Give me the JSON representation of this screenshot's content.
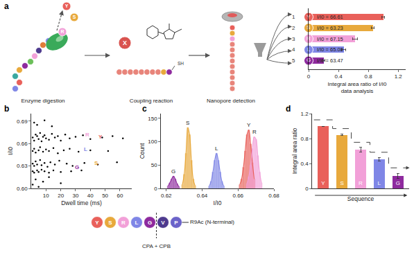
{
  "panel_labels": [
    "a",
    "b",
    "c",
    "d"
  ],
  "diagram": {
    "steps": [
      "Enzyme digestion",
      "Coupling reaction",
      "Nanopore detection"
    ],
    "released": [
      "Y",
      "S",
      "R"
    ],
    "coupled": "X",
    "thiol": "SH"
  },
  "sequence": {
    "residues": [
      "Y",
      "S",
      "R",
      "L",
      "G",
      "V",
      "P"
    ],
    "colors": [
      "#e9605a",
      "#e8a93c",
      "#f2a0d8",
      "#7f86e6",
      "#8e2a9e",
      "#4e3a8e",
      "#6b63c9"
    ],
    "tail": "R9Ac (N-terminal)",
    "cut_label": "CPA + CPB"
  },
  "chart_data": [
    {
      "type": "bar",
      "orientation": "horizontal",
      "categories": [
        "Y",
        "S",
        "R",
        "L",
        "G"
      ],
      "values": [
        1.0,
        0.86,
        0.62,
        0.47,
        0.2
      ],
      "errors": [
        0.02,
        0.02,
        0.03,
        0.03,
        0.02
      ],
      "colors": [
        "#e9605a",
        "#e8a93c",
        "#f2a0d8",
        "#7f86e6",
        "#8e2a9e"
      ],
      "annotations": [
        "I/I0 = 66.61",
        "I/I0 = 63.23",
        "I/I0 = 67.15",
        "I/I0 = 65.08",
        "I/I0 = 63.47"
      ],
      "row_numbers": [
        "1",
        "2",
        "3",
        "4",
        "5"
      ],
      "x_label": [
        "Integral area ratio of I/I0",
        "data analysis"
      ],
      "xlim": [
        0,
        1.3
      ],
      "xticks": [
        0,
        0.4,
        0.8,
        1.2
      ],
      "tick_labels": "x"
    },
    {
      "type": "scatter",
      "x": [
        1,
        2,
        3,
        4,
        5,
        6,
        7,
        8,
        9,
        10,
        12,
        14,
        16,
        18,
        20,
        23,
        26,
        30,
        35,
        40,
        48,
        55,
        62,
        1,
        2,
        3,
        5,
        6,
        8,
        10,
        12,
        15,
        18,
        22,
        26,
        32,
        40,
        52,
        1,
        2,
        3,
        4,
        6,
        7,
        9,
        11,
        13,
        16,
        19,
        24,
        28,
        36,
        45,
        58,
        1,
        2,
        4,
        5,
        7,
        9,
        12,
        15,
        20,
        27,
        34,
        1,
        3,
        5,
        8,
        12,
        20,
        2,
        4,
        9,
        14
      ],
      "y": [
        0.668,
        0.664,
        0.672,
        0.67,
        0.666,
        0.674,
        0.663,
        0.669,
        0.671,
        0.667,
        0.665,
        0.673,
        0.668,
        0.67,
        0.664,
        0.672,
        0.667,
        0.669,
        0.671,
        0.666,
        0.668,
        0.67,
        0.667,
        0.65,
        0.653,
        0.648,
        0.651,
        0.655,
        0.649,
        0.652,
        0.65,
        0.654,
        0.647,
        0.651,
        0.653,
        0.649,
        0.651,
        0.65,
        0.633,
        0.63,
        0.636,
        0.632,
        0.638,
        0.631,
        0.634,
        0.629,
        0.635,
        0.632,
        0.637,
        0.633,
        0.63,
        0.634,
        0.632,
        0.635,
        0.623,
        0.621,
        0.624,
        0.622,
        0.625,
        0.623,
        0.621,
        0.624,
        0.622,
        0.623,
        0.624,
        0.605,
        0.612,
        0.602,
        0.609,
        0.615,
        0.607,
        0.688,
        0.685,
        0.691,
        0.683
      ],
      "color": "#000000",
      "marker": "circle",
      "x_label": "Dwell time (ms)",
      "y_label": "I/I0",
      "xlim": [
        0,
        68
      ],
      "xticks": [
        10,
        20,
        30,
        40,
        50,
        60
      ],
      "ylim": [
        0.6,
        0.7
      ],
      "yticks": [
        {
          "value": 0.6,
          "label": "0.60"
        },
        0.63,
        0.66,
        0.69
      ],
      "annotations": [
        {
          "text": "R",
          "x": 38,
          "y": 0.672,
          "color": "#f2a0d8"
        },
        {
          "text": "Y",
          "x": 47,
          "y": 0.669,
          "color": "#e9605a"
        },
        {
          "text": "L",
          "x": 37,
          "y": 0.652,
          "color": "#7f86e6"
        },
        {
          "text": "S",
          "x": 44,
          "y": 0.634,
          "color": "#e8a93c"
        },
        {
          "text": "G",
          "x": 31,
          "y": 0.628,
          "color": "#8e2a9e"
        }
      ]
    },
    {
      "type": "histogram",
      "series": [
        {
          "name": "G",
          "color": "#8e2a9e",
          "x": [
            0.621,
            0.622,
            0.623,
            0.624,
            0.625,
            0.626,
            0.627
          ],
          "values": [
            5,
            12,
            20,
            26,
            20,
            10,
            4
          ]
        },
        {
          "name": "S",
          "color": "#e8a93c",
          "x": [
            0.629,
            0.63,
            0.631,
            0.632,
            0.633,
            0.634,
            0.635,
            0.636
          ],
          "values": [
            8,
            30,
            75,
            130,
            115,
            60,
            20,
            6
          ]
        },
        {
          "name": "L",
          "color": "#7f86e6",
          "x": [
            0.644,
            0.645,
            0.646,
            0.647,
            0.648,
            0.649,
            0.65,
            0.651,
            0.652
          ],
          "values": [
            5,
            15,
            35,
            60,
            75,
            60,
            35,
            15,
            5
          ]
        },
        {
          "name": "Y",
          "color": "#e9605a",
          "x": [
            0.661,
            0.662,
            0.663,
            0.664,
            0.665,
            0.666,
            0.667,
            0.668,
            0.669
          ],
          "values": [
            8,
            20,
            45,
            80,
            115,
            125,
            95,
            55,
            20
          ]
        },
        {
          "name": "R",
          "color": "#f2a0d8",
          "x": [
            0.665,
            0.666,
            0.667,
            0.668,
            0.669,
            0.67,
            0.671,
            0.672,
            0.673
          ],
          "values": [
            10,
            25,
            50,
            85,
            110,
            105,
            70,
            35,
            12
          ]
        }
      ],
      "x_label": "I/I0",
      "y_label": "Count",
      "xlim": [
        0.617,
        0.68
      ],
      "xticks": [
        0.62,
        0.64,
        0.66,
        0.68
      ],
      "ylim": [
        0,
        160
      ],
      "yticks": [
        0,
        50,
        100,
        150
      ]
    },
    {
      "type": "bar",
      "categories": [
        "Y",
        "S",
        "R",
        "L",
        "G"
      ],
      "values": [
        1.0,
        0.86,
        0.62,
        0.47,
        0.2
      ],
      "errors": [
        0,
        0.01,
        0.04,
        0.03,
        0.04
      ],
      "colors": [
        "#e9605a",
        "#e8a93c",
        "#f2a0d8",
        "#7f86e6",
        "#8e2a9e"
      ],
      "step_line": {
        "values": [
          1.1,
          0.96,
          0.74,
          0.58,
          0.33
        ],
        "line_style": "dashed"
      },
      "x_label": "Sequence",
      "y_label": "Integral area ratio",
      "ylim": [
        0,
        1.2
      ],
      "yticks": [
        0,
        0.4,
        0.8,
        1.2
      ],
      "tick_labels": "y"
    }
  ]
}
